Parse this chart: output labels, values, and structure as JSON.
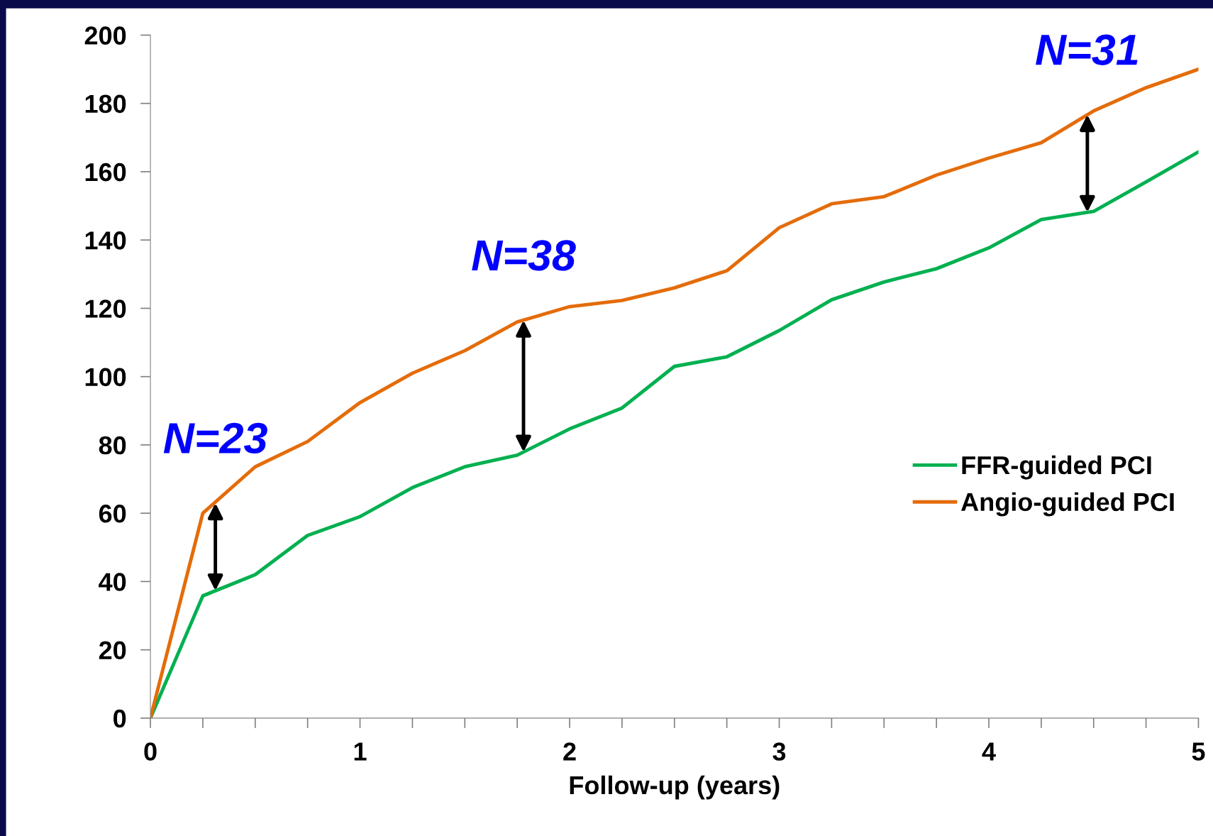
{
  "chart_data": {
    "type": "line",
    "xlabel": "Follow-up (years)",
    "x": [
      0,
      0.25,
      0.5,
      0.75,
      1,
      1.25,
      1.5,
      1.75,
      2,
      2.25,
      2.5,
      2.75,
      3,
      3.25,
      3.5,
      3.75,
      4,
      4.25,
      4.5,
      4.75,
      5
    ],
    "series": [
      {
        "name": "FFR-guided PCI",
        "color": "#00b050",
        "values": [
          0,
          35.8,
          42,
          53.5,
          59,
          67.5,
          73.6,
          77,
          84.7,
          90.8,
          103,
          105.8,
          113.5,
          122.5,
          127.7,
          131.6,
          137.7,
          146,
          148.4,
          157,
          165.8
        ]
      },
      {
        "name": "Angio-guided PCI",
        "color": "#e46c0a",
        "values": [
          0,
          60,
          73.6,
          81,
          92.4,
          101,
          107.6,
          116,
          120.5,
          122.3,
          126,
          131,
          143.6,
          150.6,
          152.7,
          159,
          164,
          168.5,
          177.8,
          184.6,
          190
        ]
      }
    ],
    "xlim": [
      0,
      5
    ],
    "xticks": [
      0,
      {
        "value": 0.25,
        "label": null
      },
      {
        "value": 0.5,
        "label": null
      },
      {
        "value": 0.75,
        "label": null
      },
      1,
      {
        "value": 1.25,
        "label": null
      },
      {
        "value": 1.5,
        "label": null
      },
      {
        "value": 1.75,
        "label": null
      },
      2,
      {
        "value": 2.25,
        "label": null
      },
      {
        "value": 2.5,
        "label": null
      },
      {
        "value": 2.75,
        "label": null
      },
      3,
      {
        "value": 3.25,
        "label": null
      },
      {
        "value": 3.5,
        "label": null
      },
      {
        "value": 3.75,
        "label": null
      },
      4,
      {
        "value": 4.25,
        "label": null
      },
      {
        "value": 4.5,
        "label": null
      },
      {
        "value": 4.75,
        "label": null
      },
      5
    ],
    "ylim": [
      0,
      200
    ],
    "yticks": [
      0,
      20,
      40,
      60,
      80,
      100,
      120,
      140,
      160,
      180,
      200
    ],
    "grid": false,
    "legend": "right",
    "marker": "none",
    "line_style": "solid",
    "annotations": [
      {
        "text": "N=23",
        "x": 0.31,
        "y": 63
      },
      {
        "text": "N=38",
        "x": 1.78,
        "y": 116.5
      },
      {
        "text": "N=31",
        "x": 4.47,
        "y": 176.7
      }
    ]
  }
}
